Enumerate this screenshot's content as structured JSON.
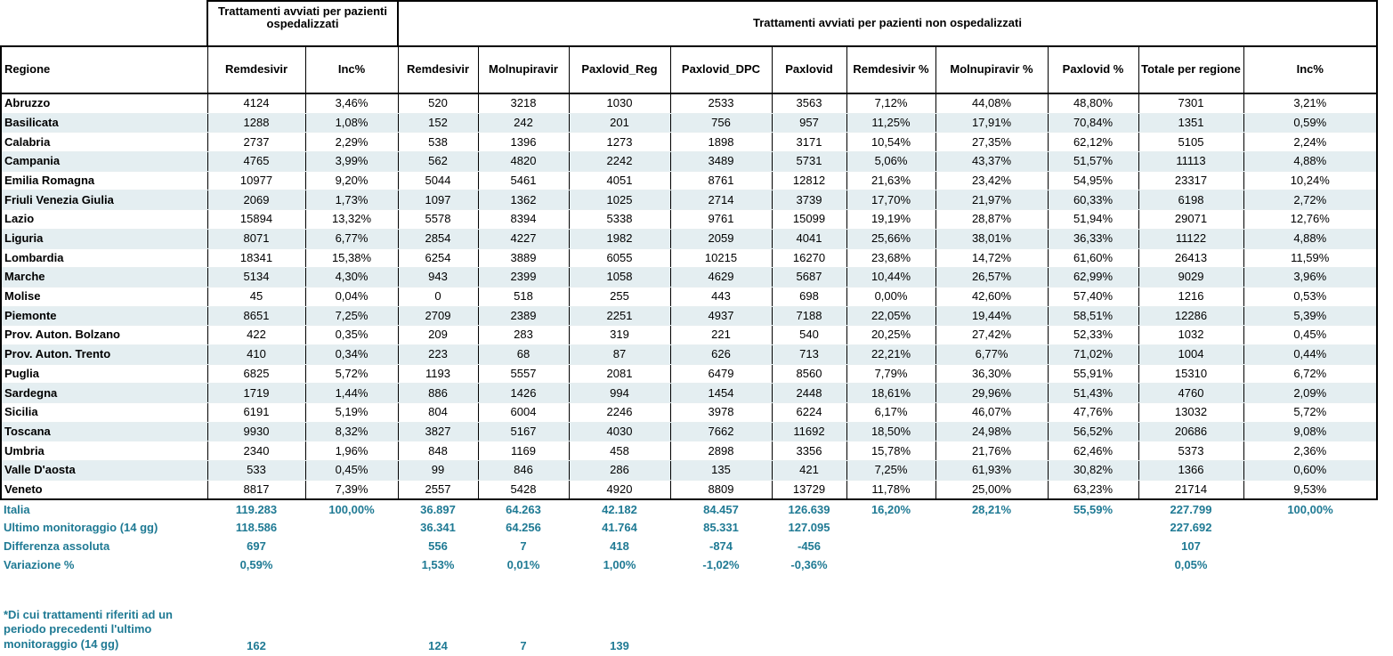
{
  "group_headers": {
    "hospitalized": "Trattamenti avviati per pazienti ospedalizzati",
    "non_hospitalized": "Trattamenti avviati per pazienti non ospedalizzati"
  },
  "columns": [
    "Regione",
    "Remdesivir",
    "Inc%",
    "Remdesivir",
    "Molnupiravir",
    "Paxlovid_Reg",
    "Paxlovid_DPC",
    "Paxlovid",
    "Remdesivir %",
    "Molnupiravir %",
    "Paxlovid %",
    "Totale per regione",
    "Inc%"
  ],
  "rows": [
    [
      "Abruzzo",
      "4124",
      "3,46%",
      "520",
      "3218",
      "1030",
      "2533",
      "3563",
      "7,12%",
      "44,08%",
      "48,80%",
      "7301",
      "3,21%"
    ],
    [
      "Basilicata",
      "1288",
      "1,08%",
      "152",
      "242",
      "201",
      "756",
      "957",
      "11,25%",
      "17,91%",
      "70,84%",
      "1351",
      "0,59%"
    ],
    [
      "Calabria",
      "2737",
      "2,29%",
      "538",
      "1396",
      "1273",
      "1898",
      "3171",
      "10,54%",
      "27,35%",
      "62,12%",
      "5105",
      "2,24%"
    ],
    [
      "Campania",
      "4765",
      "3,99%",
      "562",
      "4820",
      "2242",
      "3489",
      "5731",
      "5,06%",
      "43,37%",
      "51,57%",
      "11113",
      "4,88%"
    ],
    [
      "Emilia Romagna",
      "10977",
      "9,20%",
      "5044",
      "5461",
      "4051",
      "8761",
      "12812",
      "21,63%",
      "23,42%",
      "54,95%",
      "23317",
      "10,24%"
    ],
    [
      "Friuli Venezia Giulia",
      "2069",
      "1,73%",
      "1097",
      "1362",
      "1025",
      "2714",
      "3739",
      "17,70%",
      "21,97%",
      "60,33%",
      "6198",
      "2,72%"
    ],
    [
      "Lazio",
      "15894",
      "13,32%",
      "5578",
      "8394",
      "5338",
      "9761",
      "15099",
      "19,19%",
      "28,87%",
      "51,94%",
      "29071",
      "12,76%"
    ],
    [
      "Liguria",
      "8071",
      "6,77%",
      "2854",
      "4227",
      "1982",
      "2059",
      "4041",
      "25,66%",
      "38,01%",
      "36,33%",
      "11122",
      "4,88%"
    ],
    [
      "Lombardia",
      "18341",
      "15,38%",
      "6254",
      "3889",
      "6055",
      "10215",
      "16270",
      "23,68%",
      "14,72%",
      "61,60%",
      "26413",
      "11,59%"
    ],
    [
      "Marche",
      "5134",
      "4,30%",
      "943",
      "2399",
      "1058",
      "4629",
      "5687",
      "10,44%",
      "26,57%",
      "62,99%",
      "9029",
      "3,96%"
    ],
    [
      "Molise",
      "45",
      "0,04%",
      "0",
      "518",
      "255",
      "443",
      "698",
      "0,00%",
      "42,60%",
      "57,40%",
      "1216",
      "0,53%"
    ],
    [
      "Piemonte",
      "8651",
      "7,25%",
      "2709",
      "2389",
      "2251",
      "4937",
      "7188",
      "22,05%",
      "19,44%",
      "58,51%",
      "12286",
      "5,39%"
    ],
    [
      "Prov. Auton. Bolzano",
      "422",
      "0,35%",
      "209",
      "283",
      "319",
      "221",
      "540",
      "20,25%",
      "27,42%",
      "52,33%",
      "1032",
      "0,45%"
    ],
    [
      "Prov. Auton. Trento",
      "410",
      "0,34%",
      "223",
      "68",
      "87",
      "626",
      "713",
      "22,21%",
      "6,77%",
      "71,02%",
      "1004",
      "0,44%"
    ],
    [
      "Puglia",
      "6825",
      "5,72%",
      "1193",
      "5557",
      "2081",
      "6479",
      "8560",
      "7,79%",
      "36,30%",
      "55,91%",
      "15310",
      "6,72%"
    ],
    [
      "Sardegna",
      "1719",
      "1,44%",
      "886",
      "1426",
      "994",
      "1454",
      "2448",
      "18,61%",
      "29,96%",
      "51,43%",
      "4760",
      "2,09%"
    ],
    [
      "Sicilia",
      "6191",
      "5,19%",
      "804",
      "6004",
      "2246",
      "3978",
      "6224",
      "6,17%",
      "46,07%",
      "47,76%",
      "13032",
      "5,72%"
    ],
    [
      "Toscana",
      "9930",
      "8,32%",
      "3827",
      "5167",
      "4030",
      "7662",
      "11692",
      "18,50%",
      "24,98%",
      "56,52%",
      "20686",
      "9,08%"
    ],
    [
      "Umbria",
      "2340",
      "1,96%",
      "848",
      "1169",
      "458",
      "2898",
      "3356",
      "15,78%",
      "21,76%",
      "62,46%",
      "5373",
      "2,36%"
    ],
    [
      "Valle D'aosta",
      "533",
      "0,45%",
      "99",
      "846",
      "286",
      "135",
      "421",
      "7,25%",
      "61,93%",
      "30,82%",
      "1366",
      "0,60%"
    ],
    [
      "Veneto",
      "8817",
      "7,39%",
      "2557",
      "5428",
      "4920",
      "8809",
      "13729",
      "11,78%",
      "25,00%",
      "63,23%",
      "21714",
      "9,53%"
    ]
  ],
  "summary": [
    [
      "Italia",
      "119.283",
      "100,00%",
      "36.897",
      "64.263",
      "42.182",
      "84.457",
      "126.639",
      "16,20%",
      "28,21%",
      "55,59%",
      "227.799",
      "100,00%"
    ],
    [
      "Ultimo monitoraggio (14 gg)",
      "118.586",
      "",
      "36.341",
      "64.256",
      "41.764",
      "85.331",
      "127.095",
      "",
      "",
      "",
      "227.692",
      ""
    ],
    [
      "Differenza assoluta",
      "697",
      "",
      "556",
      "7",
      "418",
      "-874",
      "-456",
      "",
      "",
      "",
      "107",
      ""
    ],
    [
      "Variazione %",
      "0,59%",
      "",
      "1,53%",
      "0,01%",
      "1,00%",
      "-1,02%",
      "-0,36%",
      "",
      "",
      "",
      "0,05%",
      ""
    ]
  ],
  "note": [
    "*Di cui trattamenti riferiti ad un periodo precedenti l'ultimo monitoraggio (14 gg)",
    "162",
    "",
    "124",
    "7",
    "139",
    "",
    "",
    "",
    "",
    "",
    "",
    ""
  ],
  "colors": {
    "row_alt": "#e4eef1",
    "summary_text": "#1f7a94"
  }
}
